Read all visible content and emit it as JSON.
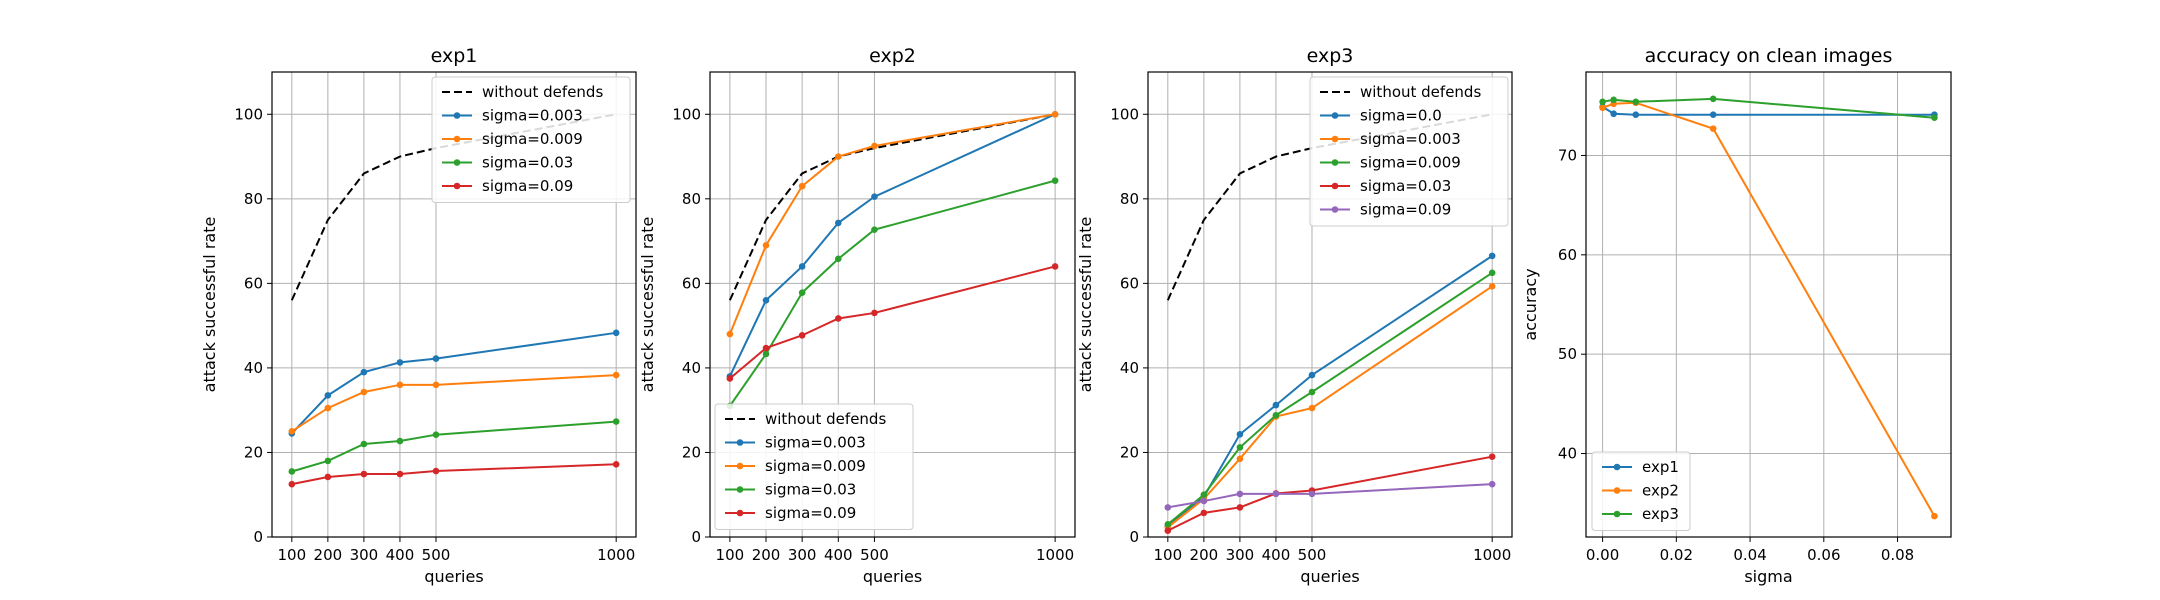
{
  "colors": {
    "black_dashed": "#000000",
    "blue": "#1f77b4",
    "orange": "#ff7f0e",
    "green": "#2ca02c",
    "red": "#d62728",
    "purple": "#9467bd",
    "grid": "#b0b0b0"
  },
  "chart_data": [
    {
      "type": "line",
      "title": "exp1",
      "xlabel": "queries",
      "ylabel": "attack successful rate",
      "x": [
        100,
        200,
        300,
        400,
        500,
        1000
      ],
      "xticks": [
        100,
        200,
        300,
        400,
        500,
        1000
      ],
      "yticks": [
        0,
        20,
        40,
        60,
        80,
        100
      ],
      "xlim": [
        45,
        1055
      ],
      "ylim": [
        0,
        110
      ],
      "grid": true,
      "legend_position": "top-right",
      "series": [
        {
          "name": "without defends",
          "color": "#000000",
          "dashed": true,
          "markers": false,
          "values": [
            56,
            75,
            86,
            90,
            92,
            100
          ]
        },
        {
          "name": "sigma=0.003",
          "color": "#1f77b4",
          "dashed": false,
          "markers": true,
          "values": [
            24.5,
            33.5,
            39,
            41.3,
            42.2,
            48.3
          ]
        },
        {
          "name": "sigma=0.009",
          "color": "#ff7f0e",
          "dashed": false,
          "markers": true,
          "values": [
            25,
            30.5,
            34.3,
            36,
            36,
            38.3
          ]
        },
        {
          "name": "sigma=0.03",
          "color": "#2ca02c",
          "dashed": false,
          "markers": true,
          "values": [
            15.5,
            18,
            22,
            22.7,
            24.2,
            27.3
          ]
        },
        {
          "name": "sigma=0.09",
          "color": "#d62728",
          "dashed": false,
          "markers": true,
          "values": [
            12.5,
            14.2,
            14.9,
            14.9,
            15.6,
            17.2
          ]
        }
      ]
    },
    {
      "type": "line",
      "title": "exp2",
      "xlabel": "queries",
      "ylabel": "attack successful rate",
      "x": [
        100,
        200,
        300,
        400,
        500,
        1000
      ],
      "xticks": [
        100,
        200,
        300,
        400,
        500,
        1000
      ],
      "yticks": [
        0,
        20,
        40,
        60,
        80,
        100
      ],
      "xlim": [
        45,
        1055
      ],
      "ylim": [
        0,
        110
      ],
      "grid": true,
      "legend_position": "bottom-left",
      "series": [
        {
          "name": "without defends",
          "color": "#000000",
          "dashed": true,
          "markers": false,
          "values": [
            56,
            75,
            86,
            90,
            92,
            100
          ]
        },
        {
          "name": "sigma=0.003",
          "color": "#1f77b4",
          "dashed": false,
          "markers": true,
          "values": [
            38,
            56,
            64,
            74.3,
            80.5,
            100
          ]
        },
        {
          "name": "sigma=0.009",
          "color": "#ff7f0e",
          "dashed": false,
          "markers": true,
          "values": [
            48,
            69,
            83,
            90,
            92.5,
            100
          ]
        },
        {
          "name": "sigma=0.03",
          "color": "#2ca02c",
          "dashed": false,
          "markers": true,
          "values": [
            31,
            43.3,
            57.8,
            65.8,
            72.7,
            84.3
          ]
        },
        {
          "name": "sigma=0.09",
          "color": "#d62728",
          "dashed": false,
          "markers": true,
          "values": [
            37.5,
            44.7,
            47.7,
            51.7,
            53,
            64
          ]
        }
      ]
    },
    {
      "type": "line",
      "title": "exp3",
      "xlabel": "queries",
      "ylabel": "attack successful rate",
      "x": [
        100,
        200,
        300,
        400,
        500,
        1000
      ],
      "xticks": [
        100,
        200,
        300,
        400,
        500,
        1000
      ],
      "yticks": [
        0,
        20,
        40,
        60,
        80,
        100
      ],
      "xlim": [
        45,
        1055
      ],
      "ylim": [
        0,
        110
      ],
      "grid": true,
      "legend_position": "top-right",
      "series": [
        {
          "name": "without defends",
          "color": "#000000",
          "dashed": true,
          "markers": false,
          "values": [
            56,
            75,
            86,
            90,
            92,
            100
          ]
        },
        {
          "name": "sigma=0.0",
          "color": "#1f77b4",
          "dashed": false,
          "markers": true,
          "values": [
            2.5,
            9.5,
            24.3,
            31.2,
            38.3,
            66.5
          ]
        },
        {
          "name": "sigma=0.003",
          "color": "#ff7f0e",
          "dashed": false,
          "markers": true,
          "values": [
            2.3,
            9,
            18.5,
            28.5,
            30.5,
            59.3
          ]
        },
        {
          "name": "sigma=0.009",
          "color": "#2ca02c",
          "dashed": false,
          "markers": true,
          "values": [
            3,
            10,
            21.2,
            28.8,
            34.3,
            62.5
          ]
        },
        {
          "name": "sigma=0.03",
          "color": "#d62728",
          "dashed": false,
          "markers": true,
          "values": [
            1.5,
            5.7,
            7,
            10.3,
            11,
            19
          ]
        },
        {
          "name": "sigma=0.09",
          "color": "#9467bd",
          "dashed": false,
          "markers": true,
          "values": [
            7,
            8.5,
            10.2,
            10.2,
            10.2,
            12.5
          ]
        }
      ]
    },
    {
      "type": "line",
      "title": "accuracy on clean images",
      "xlabel": "sigma",
      "ylabel": "accuracy",
      "x": [
        0.0,
        0.003,
        0.009,
        0.03,
        0.09
      ],
      "xticks": [
        0.0,
        0.02,
        0.04,
        0.06,
        0.08
      ],
      "xtick_labels": [
        "0.00",
        "0.02",
        "0.04",
        "0.06",
        "0.08"
      ],
      "yticks": [
        40,
        50,
        60,
        70
      ],
      "xlim": [
        -0.0045,
        0.0945
      ],
      "ylim": [
        31.6,
        78.4
      ],
      "grid": true,
      "legend_position": "bottom-left",
      "series": [
        {
          "name": "exp1",
          "color": "#1f77b4",
          "dashed": false,
          "markers": true,
          "values": [
            74.9,
            74.2,
            74.1,
            74.1,
            74.1
          ]
        },
        {
          "name": "exp2",
          "color": "#ff7f0e",
          "dashed": false,
          "markers": true,
          "values": [
            74.8,
            75.2,
            75.3,
            72.7,
            33.7
          ]
        },
        {
          "name": "exp3",
          "color": "#2ca02c",
          "dashed": false,
          "markers": true,
          "values": [
            75.4,
            75.6,
            75.4,
            75.7,
            73.8
          ]
        }
      ]
    }
  ]
}
